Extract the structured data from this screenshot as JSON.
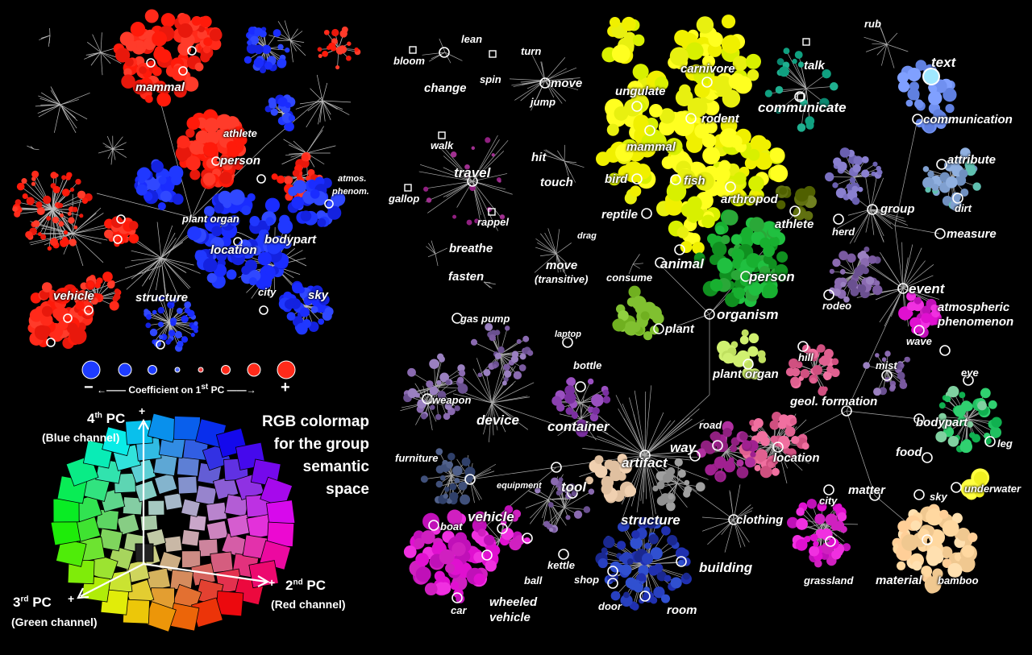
{
  "left_map": {
    "labels": {
      "mammal": "mammal",
      "athlete": "athlete",
      "person": "person",
      "atmos": "atmos.",
      "phenom": "phenom.",
      "plant_organ": "plant organ",
      "location": "location",
      "bodypart": "bodypart",
      "city": "city",
      "sky": "sky",
      "vehicle": "vehicle",
      "structure": "structure"
    },
    "legend": {
      "minus": "−",
      "plus": "+",
      "caption_pre": "Coefficient on 1",
      "caption_sup": "st",
      "caption_post": " PC",
      "dot_colors": [
        "#1e3cff",
        "#1e3cff",
        "#1e3cff",
        "#4a66ff",
        "#e84040",
        "#ff2a1a",
        "#ff2a1a",
        "#ff2a1a"
      ]
    }
  },
  "colormap": {
    "title_lines": [
      "RGB colormap",
      "for the group",
      "semantic",
      "space"
    ],
    "pc4_pre": "4",
    "pc4_sup": "th",
    "pc4_post": " PC",
    "pc4_sub": "(Blue channel)",
    "pc2_pre": "2",
    "pc2_sup": "nd",
    "pc2_post": " PC",
    "pc2_sub": "(Red channel)",
    "pc3_pre": "3",
    "pc3_sup": "rd",
    "pc3_post": " PC",
    "pc3_sub": "(Green channel)",
    "plus": "+"
  },
  "right_map": {
    "labels": {
      "bloom": "bloom",
      "lean": "lean",
      "change": "change",
      "turn": "turn",
      "spin": "spin",
      "move": "move",
      "jump": "jump",
      "walk": "walk",
      "travel": "travel",
      "gallop": "gallop",
      "rappel": "rappel",
      "hit": "hit",
      "touch": "touch",
      "breathe": "breathe",
      "drag": "drag",
      "fasten": "fasten",
      "move_trans": "move",
      "move_trans_sub": "(transitive)",
      "consume": "consume",
      "gas_pump": "gas pump",
      "laptop": "laptop",
      "bottle": "bottle",
      "weapon": "weapon",
      "device": "device",
      "container": "container",
      "furniture": "furniture",
      "equipment": "equipment",
      "tool": "tool",
      "vehicle": "vehicle",
      "boat": "boat",
      "car": "car",
      "kettle": "kettle",
      "ball": "ball",
      "wheeled": "wheeled",
      "vehicle2": "vehicle",
      "ungulate": "ungulate",
      "carnivore": "carnivore",
      "rodent": "rodent",
      "mammal": "mammal",
      "bird": "bird",
      "fish": "fish",
      "reptile": "reptile",
      "arthropod": "arthropod",
      "athlete": "athlete",
      "animal": "animal",
      "person": "person",
      "organism": "organism",
      "plant": "plant",
      "plant_organ": "plant organ",
      "hill": "hill",
      "road": "road",
      "way": "way",
      "artifact": "artifact",
      "structure": "structure",
      "clothing": "clothing",
      "building": "building",
      "shop": "shop",
      "door": "door",
      "room": "room",
      "location": "location",
      "city": "city",
      "grassland": "grassland",
      "talk": "talk",
      "communicate": "communicate",
      "rub": "rub",
      "text": "text",
      "communication": "communication",
      "attribute": "attribute",
      "group": "group",
      "dirt": "dirt",
      "herd": "herd",
      "measure": "measure",
      "event": "event",
      "rodeo": "rodeo",
      "atmospheric": "atmospheric",
      "phenomenon": "phenomenon",
      "wave": "wave",
      "mist": "mist",
      "eye": "eye",
      "geol": "geol. formation",
      "bodypart": "bodypart",
      "leg": "leg",
      "food": "food",
      "matter": "matter",
      "sky": "sky",
      "underwater": "underwater",
      "material": "material",
      "bamboo": "bamboo"
    }
  }
}
